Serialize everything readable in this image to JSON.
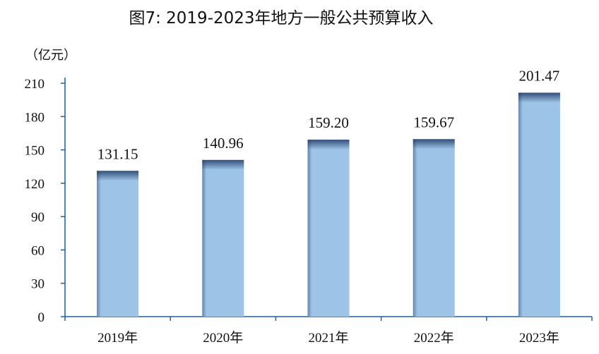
{
  "chart_data": {
    "type": "bar",
    "title": "图7: 2019-2023年地方一般公共预算收入",
    "unit_label": "（亿元）",
    "categories": [
      "2019年",
      "2020年",
      "2021年",
      "2022年",
      "2023年"
    ],
    "values": [
      131.15,
      140.96,
      159.2,
      159.67,
      201.47
    ],
    "value_labels": [
      "131.15",
      "140.96",
      "159.20",
      "159.67",
      "201.47"
    ],
    "yticks": [
      "0",
      "30",
      "60",
      "90",
      "120",
      "150",
      "180",
      "210"
    ],
    "ylim": [
      0,
      210
    ],
    "xlabel": "",
    "ylabel": "",
    "grid": false,
    "legend": "none",
    "colors": {
      "bar_fill": "#9dc3e6",
      "bar_shadow": "#1f3864",
      "axis": "#1f5f9e",
      "text": "#111111"
    }
  }
}
